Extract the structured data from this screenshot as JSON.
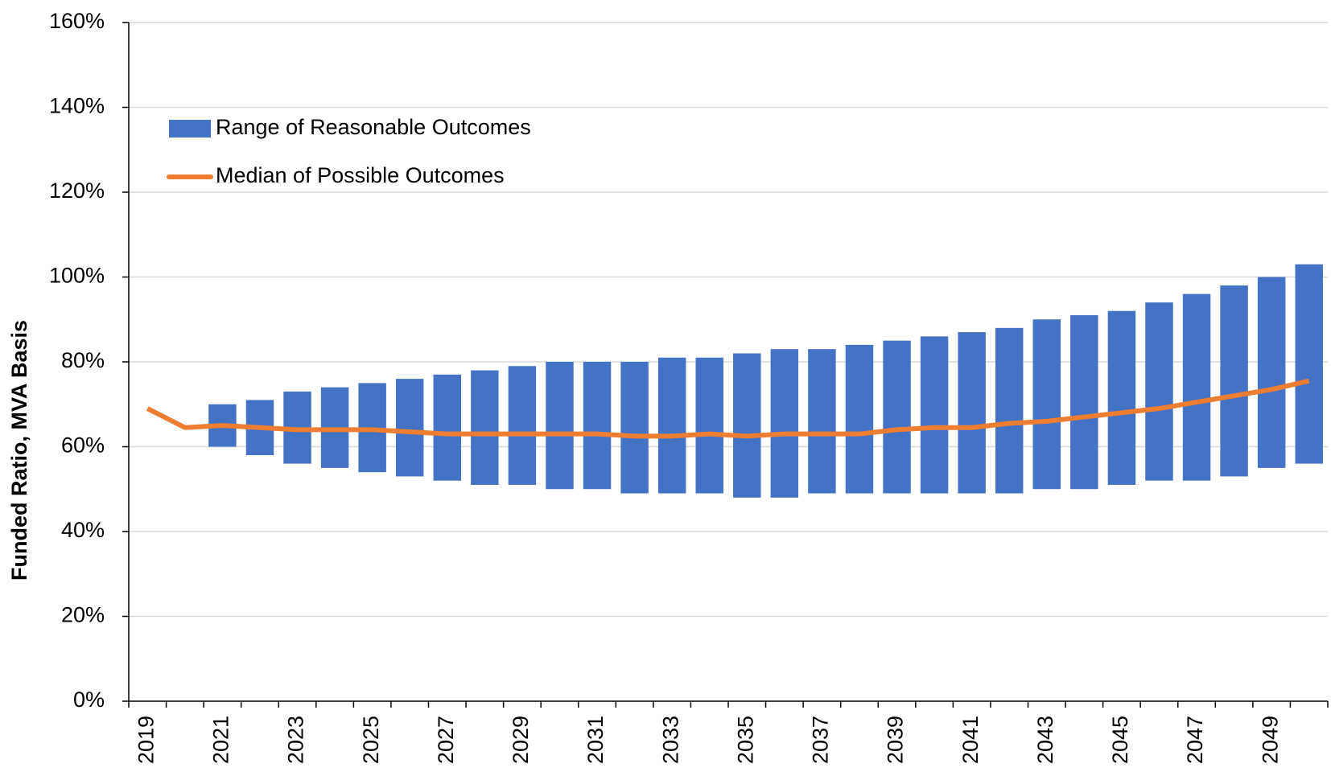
{
  "chart_data": {
    "type": "range-bar-line",
    "y_axis_label": "Funded Ratio, MVA Basis",
    "categories": [
      "2019",
      null,
      "2021",
      null,
      "2023",
      null,
      "2025",
      null,
      "2027",
      null,
      "2029",
      null,
      "2031",
      null,
      "2033",
      null,
      "2035",
      null,
      "2037",
      null,
      "2039",
      null,
      "2041",
      null,
      "2043",
      null,
      "2045",
      null,
      "2047",
      null,
      "2049",
      null
    ],
    "series": [
      {
        "name": "Range of Reasonable Outcomes",
        "color": "#4472c4",
        "low": [
          null,
          null,
          60,
          58,
          56,
          55,
          54,
          53,
          52,
          51,
          51,
          50,
          50,
          49,
          49,
          49,
          48,
          48,
          49,
          49,
          49,
          49,
          49,
          49,
          50,
          50,
          51,
          52,
          52,
          53,
          55,
          56
        ],
        "high": [
          null,
          null,
          70,
          71,
          73,
          74,
          75,
          76,
          77,
          78,
          79,
          80,
          80,
          80,
          81,
          81,
          82,
          83,
          83,
          84,
          85,
          86,
          87,
          88,
          90,
          91,
          92,
          94,
          96,
          98,
          100,
          103
        ]
      },
      {
        "name": "Median of Possible Outcomes",
        "color": "#ed7d31",
        "values": [
          69,
          64.5,
          65,
          64.5,
          64,
          64,
          64,
          63.5,
          63,
          63,
          63,
          63,
          63,
          62.5,
          62.5,
          63,
          62.5,
          63,
          63,
          63,
          64,
          64.5,
          64.5,
          65.5,
          66,
          67,
          68,
          69,
          70.5,
          72,
          73.5,
          75.5
        ]
      }
    ],
    "ylim": [
      0,
      160
    ],
    "yticks": [
      {
        "value": 0,
        "label": "0%"
      },
      {
        "value": 20,
        "label": "20%"
      },
      {
        "value": 40,
        "label": "40%"
      },
      {
        "value": 60,
        "label": "60%"
      },
      {
        "value": 80,
        "label": "80%"
      },
      {
        "value": 100,
        "label": "100%"
      },
      {
        "value": 120,
        "label": "120%"
      },
      {
        "value": 140,
        "label": "140%"
      },
      {
        "value": 160,
        "label": "160%"
      }
    ],
    "grid": true
  }
}
